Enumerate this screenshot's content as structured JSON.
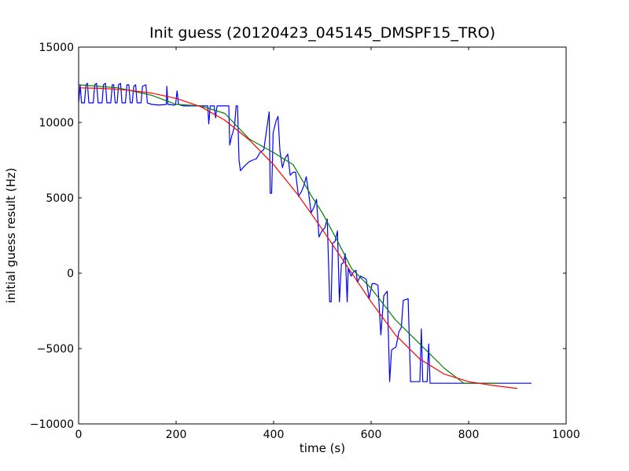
{
  "chart_data": {
    "type": "line",
    "title": "Init guess (20120423_045145_DMSPF15_TRO)",
    "xlabel": "time (s)",
    "ylabel": "initial guess result (Hz)",
    "xlim": [
      0,
      1000
    ],
    "ylim": [
      -10000,
      15000
    ],
    "xticks": [
      0,
      200,
      400,
      600,
      800,
      1000
    ],
    "yticks": [
      -10000,
      -5000,
      0,
      5000,
      10000,
      15000
    ],
    "xtick_labels": [
      "0",
      "200",
      "400",
      "600",
      "800",
      "1000"
    ],
    "ytick_labels": [
      "−10000",
      "−5000",
      "0",
      "5000",
      "10000",
      "15000"
    ],
    "grid": false,
    "legend": "none",
    "series": [
      {
        "color": "#0000ff",
        "points": [
          [
            0,
            11300
          ],
          [
            3,
            12500
          ],
          [
            6,
            11300
          ],
          [
            12,
            11300
          ],
          [
            15,
            12500
          ],
          [
            18,
            12600
          ],
          [
            21,
            11300
          ],
          [
            30,
            11300
          ],
          [
            33,
            12500
          ],
          [
            37,
            12600
          ],
          [
            40,
            11300
          ],
          [
            48,
            11300
          ],
          [
            51,
            12500
          ],
          [
            55,
            12600
          ],
          [
            58,
            11300
          ],
          [
            66,
            11300
          ],
          [
            69,
            12500
          ],
          [
            72,
            12500
          ],
          [
            75,
            11300
          ],
          [
            79,
            11300
          ],
          [
            82,
            12500
          ],
          [
            86,
            12600
          ],
          [
            89,
            11300
          ],
          [
            96,
            11300
          ],
          [
            99,
            12500
          ],
          [
            103,
            12500
          ],
          [
            106,
            11300
          ],
          [
            110,
            11300
          ],
          [
            113,
            12400
          ],
          [
            117,
            12500
          ],
          [
            120,
            11300
          ],
          [
            128,
            11300
          ],
          [
            131,
            12400
          ],
          [
            138,
            12500
          ],
          [
            141,
            11300
          ],
          [
            150,
            11200
          ],
          [
            165,
            11150
          ],
          [
            180,
            11200
          ],
          [
            181,
            12400
          ],
          [
            183,
            11200
          ],
          [
            197,
            11150
          ],
          [
            199,
            11200
          ],
          [
            202,
            12100
          ],
          [
            205,
            11200
          ],
          [
            215,
            11100
          ],
          [
            255,
            11100
          ],
          [
            265,
            11100
          ],
          [
            267,
            9900
          ],
          [
            270,
            11100
          ],
          [
            278,
            11100
          ],
          [
            281,
            10300
          ],
          [
            284,
            11100
          ],
          [
            300,
            11100
          ],
          [
            308,
            11100
          ],
          [
            310,
            8500
          ],
          [
            314,
            9100
          ],
          [
            317,
            9400
          ],
          [
            320,
            9800
          ],
          [
            323,
            11100
          ],
          [
            326,
            11100
          ],
          [
            329,
            7500
          ],
          [
            332,
            6800
          ],
          [
            340,
            7100
          ],
          [
            350,
            7400
          ],
          [
            357,
            7500
          ],
          [
            365,
            7600
          ],
          [
            372,
            8000
          ],
          [
            380,
            8200
          ],
          [
            386,
            9600
          ],
          [
            391,
            10700
          ],
          [
            393,
            5300
          ],
          [
            396,
            5300
          ],
          [
            399,
            9300
          ],
          [
            405,
            10100
          ],
          [
            409,
            10400
          ],
          [
            413,
            8100
          ],
          [
            418,
            7000
          ],
          [
            423,
            7600
          ],
          [
            429,
            7900
          ],
          [
            434,
            6500
          ],
          [
            440,
            6700
          ],
          [
            445,
            6700
          ],
          [
            451,
            5100
          ],
          [
            457,
            5400
          ],
          [
            462,
            5800
          ],
          [
            467,
            6400
          ],
          [
            472,
            5300
          ],
          [
            477,
            4000
          ],
          [
            483,
            4400
          ],
          [
            488,
            4900
          ],
          [
            493,
            2400
          ],
          [
            499,
            2800
          ],
          [
            505,
            3000
          ],
          [
            510,
            3600
          ],
          [
            515,
            -1900
          ],
          [
            518,
            -1900
          ],
          [
            521,
            2000
          ],
          [
            526,
            2100
          ],
          [
            531,
            2800
          ],
          [
            535,
            -1900
          ],
          [
            539,
            600
          ],
          [
            543,
            700
          ],
          [
            547,
            1300
          ],
          [
            551,
            -1900
          ],
          [
            553,
            300
          ],
          [
            559,
            -200
          ],
          [
            564,
            100
          ],
          [
            569,
            200
          ],
          [
            572,
            -600
          ],
          [
            578,
            -200
          ],
          [
            585,
            -300
          ],
          [
            590,
            -400
          ],
          [
            596,
            -1700
          ],
          [
            602,
            -700
          ],
          [
            608,
            -700
          ],
          [
            614,
            -800
          ],
          [
            620,
            -4100
          ],
          [
            626,
            -1500
          ],
          [
            633,
            -1200
          ],
          [
            638,
            -7200
          ],
          [
            642,
            -5100
          ],
          [
            646,
            -5000
          ],
          [
            651,
            -4900
          ],
          [
            657,
            -3900
          ],
          [
            662,
            -3600
          ],
          [
            666,
            -1800
          ],
          [
            676,
            -1700
          ],
          [
            681,
            -7200
          ],
          [
            700,
            -7200
          ],
          [
            703,
            -3700
          ],
          [
            706,
            -7200
          ],
          [
            715,
            -7200
          ],
          [
            718,
            -4700
          ],
          [
            721,
            -7300
          ],
          [
            760,
            -7300
          ],
          [
            800,
            -7300
          ],
          [
            850,
            -7300
          ],
          [
            929,
            -7300
          ]
        ]
      },
      {
        "color": "#008000",
        "points": [
          [
            0,
            12500
          ],
          [
            80,
            12300
          ],
          [
            150,
            11800
          ],
          [
            200,
            11200
          ],
          [
            250,
            11100
          ],
          [
            300,
            10600
          ],
          [
            350,
            8900
          ],
          [
            400,
            8000
          ],
          [
            440,
            7200
          ],
          [
            480,
            5000
          ],
          [
            500,
            4000
          ],
          [
            530,
            2200
          ],
          [
            560,
            300
          ],
          [
            600,
            -1000
          ],
          [
            650,
            -3100
          ],
          [
            700,
            -4700
          ],
          [
            750,
            -6300
          ],
          [
            790,
            -7300
          ],
          [
            860,
            -7300
          ]
        ]
      },
      {
        "color": "#ff0000",
        "points": [
          [
            0,
            12300
          ],
          [
            50,
            12260
          ],
          [
            100,
            12150
          ],
          [
            150,
            11950
          ],
          [
            200,
            11600
          ],
          [
            250,
            11050
          ],
          [
            300,
            10150
          ],
          [
            350,
            8850
          ],
          [
            400,
            7200
          ],
          [
            450,
            5200
          ],
          [
            500,
            2900
          ],
          [
            550,
            500
          ],
          [
            600,
            -1900
          ],
          [
            650,
            -4100
          ],
          [
            700,
            -5700
          ],
          [
            750,
            -6700
          ],
          [
            800,
            -7200
          ],
          [
            850,
            -7450
          ],
          [
            900,
            -7650
          ]
        ]
      }
    ]
  }
}
